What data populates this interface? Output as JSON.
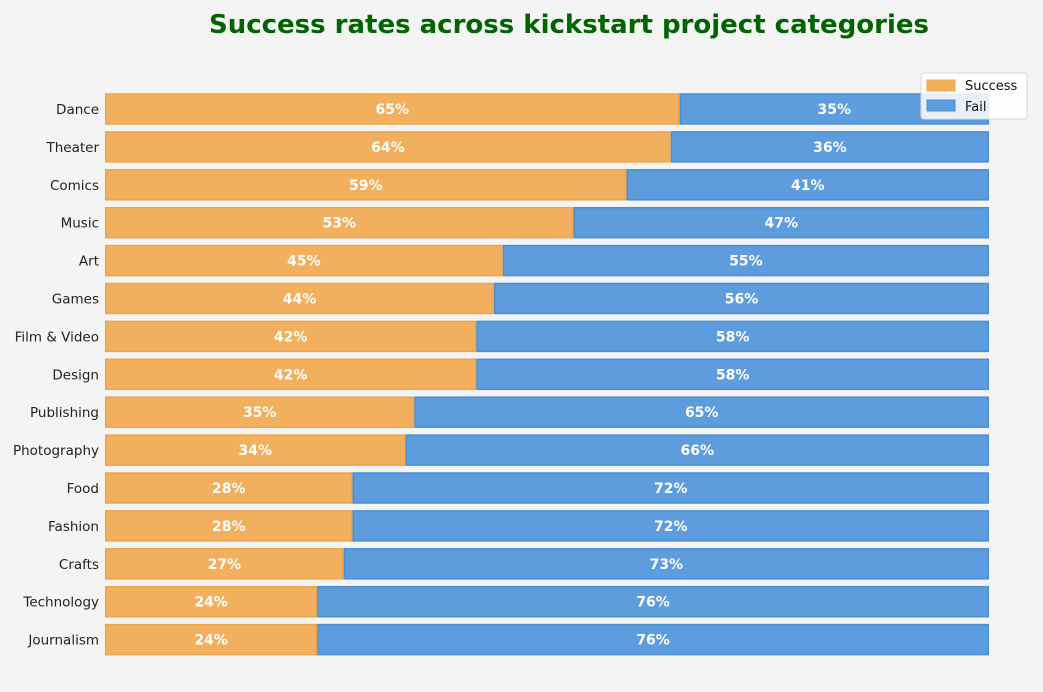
{
  "chart_data": {
    "type": "bar",
    "orientation": "horizontal",
    "stacked": true,
    "title": "Success rates across kickstart project categories",
    "categories": [
      "Dance",
      "Theater",
      "Comics",
      "Music",
      "Art",
      "Games",
      "Film & Video",
      "Design",
      "Publishing",
      "Photography",
      "Food",
      "Fashion",
      "Crafts",
      "Technology",
      "Journalism"
    ],
    "series": [
      {
        "name": "Success",
        "color": "#f2b05e",
        "edge_color": "#eda54a",
        "values": [
          65,
          64,
          59,
          53,
          45,
          44,
          42,
          42,
          35,
          34,
          28,
          28,
          27,
          24,
          24
        ]
      },
      {
        "name": "Fail",
        "color": "#5d9ddd",
        "edge_color": "#4a8fd6",
        "values": [
          35,
          36,
          41,
          47,
          55,
          56,
          58,
          58,
          65,
          66,
          72,
          72,
          73,
          76,
          76
        ]
      }
    ],
    "value_labels": {
      "Success": [
        "65%",
        "64%",
        "59%",
        "53%",
        "45%",
        "44%",
        "42%",
        "42%",
        "35%",
        "34%",
        "28%",
        "28%",
        "27%",
        "24%",
        "24%"
      ],
      "Fail": [
        "35%",
        "36%",
        "41%",
        "47%",
        "55%",
        "56%",
        "58%",
        "58%",
        "65%",
        "66%",
        "72%",
        "72%",
        "73%",
        "76%",
        "76%"
      ]
    },
    "xlim": [
      0,
      100
    ],
    "xlabel": "",
    "ylabel": "",
    "grid": false,
    "x_axis_visible": false,
    "legend": {
      "position": "top-right",
      "entries": [
        "Success",
        "Fail"
      ]
    },
    "title_color": "#006400",
    "background": "#f4f4f4"
  }
}
